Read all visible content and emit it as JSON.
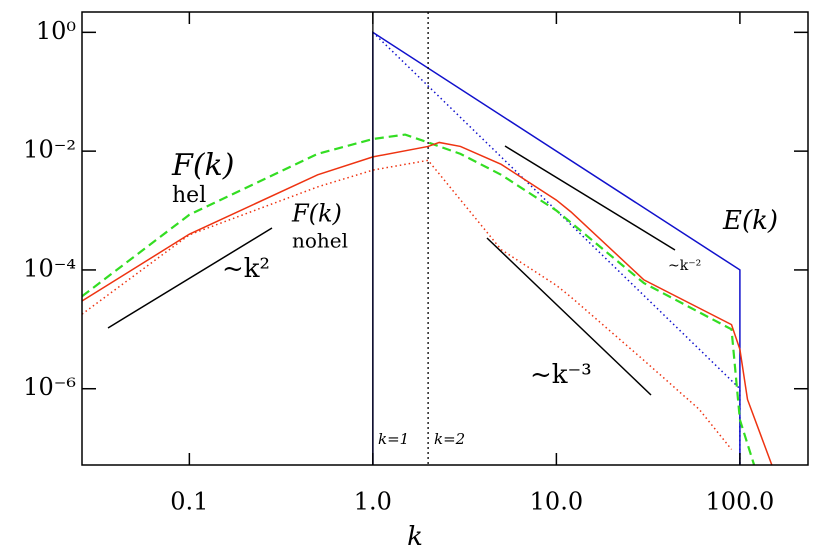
{
  "chart_data": {
    "type": "line",
    "x_label": "k",
    "log_x": true,
    "log_y": true,
    "xlim": [
      0.026,
      235
    ],
    "ylim": [
      5.2e-08,
      2.2
    ],
    "xticks": [
      {
        "value": 0.1,
        "label": "0.1"
      },
      {
        "value": 1,
        "label": "1.0"
      },
      {
        "value": 10,
        "label": "10.0"
      },
      {
        "value": 100,
        "label": "100.0"
      }
    ],
    "yticks": [
      {
        "value": 1,
        "label": "10⁰"
      },
      {
        "value": 0.01,
        "label": "10⁻²"
      },
      {
        "value": 0.0001,
        "label": "10⁻⁴"
      },
      {
        "value": 1e-06,
        "label": "10⁻⁶"
      }
    ],
    "vlines": [
      1,
      2
    ],
    "series": [
      {
        "color": "#1111cc",
        "dash": "solid",
        "x": [
          1,
          1,
          100,
          100
        ],
        "values": [
          5e-08,
          1,
          0.0001,
          5e-08
        ]
      },
      {
        "color": "#1111cc",
        "dash": "dotted",
        "x": [
          1,
          100,
          100
        ],
        "values": [
          1,
          1e-06,
          5e-08
        ]
      },
      {
        "color": "#33dd22",
        "dash": "dashed",
        "x": [
          0.026,
          0.1,
          0.5,
          1,
          1.5,
          2,
          3,
          5,
          10,
          30,
          90,
          100,
          120
        ],
        "values": [
          3.6e-05,
          0.00085,
          0.009,
          0.016,
          0.019,
          0.014,
          0.009,
          0.004,
          0.001,
          6e-05,
          1e-05,
          3e-07,
          5e-08
        ]
      },
      {
        "color": "#ee3311",
        "dash": "solid",
        "x": [
          0.026,
          0.1,
          0.5,
          1,
          2,
          2.3,
          3,
          5,
          10,
          12,
          30,
          90,
          100,
          110,
          150
        ],
        "values": [
          3e-05,
          0.0004,
          0.004,
          0.008,
          0.012,
          0.014,
          0.012,
          0.006,
          0.0015,
          0.00095,
          6.8e-05,
          1.2e-05,
          4.6e-06,
          6.6e-07,
          5e-08
        ]
      },
      {
        "color": "#ee3311",
        "dash": "dotted",
        "x": [
          0.026,
          0.1,
          0.5,
          1,
          2,
          5,
          10,
          12,
          30,
          60,
          90
        ],
        "values": [
          1.8e-05,
          0.00039,
          0.0025,
          0.0048,
          0.007,
          0.00022,
          5.5e-05,
          3.5e-05,
          3e-06,
          4.5e-07,
          9.5e-08
        ]
      }
    ],
    "annotations": [
      {
        "text": "F(k)",
        "color": "#33dd22"
      },
      {
        "text": "hel",
        "color": "#33dd22"
      },
      {
        "text": "F(k)",
        "color": "#ee3311"
      },
      {
        "text": "nohel",
        "color": "#ee3311"
      },
      {
        "text": "E(k)",
        "color": "#1111cc"
      },
      {
        "text": "~k²",
        "color": "#000000"
      },
      {
        "text": "~k⁻³",
        "color": "#000000"
      },
      {
        "text": "~k⁻²",
        "color": "#000000"
      },
      {
        "text": "k=1",
        "color": "#000000"
      },
      {
        "text": "k=2",
        "color": "#000000"
      }
    ]
  }
}
